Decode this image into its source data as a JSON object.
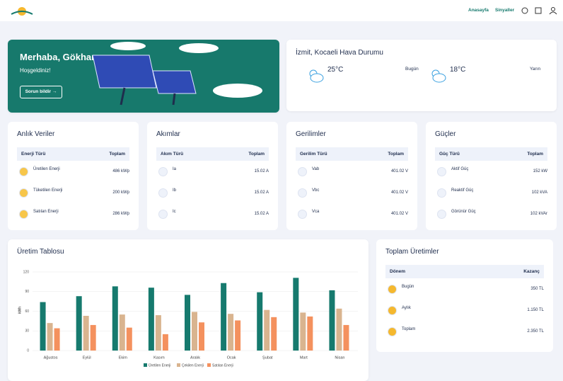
{
  "header": {
    "nav": [
      "Anasayfa",
      "Sinyaller"
    ]
  },
  "welcome": {
    "title": "Merhaba, Gökhan",
    "subtitle": "Hoşgeldiniz!",
    "button": "Sorun bildir"
  },
  "weather": {
    "title": "İzmit, Kocaeli Hava Durumu",
    "days": [
      {
        "temp": "25°C",
        "label": "Bugün"
      },
      {
        "temp": "18°C",
        "label": "Yarın"
      }
    ]
  },
  "cards": [
    {
      "title": "Anlık Veriler",
      "columns": [
        "Enerji Türü",
        "Toplam"
      ],
      "rows": [
        [
          "Üretilen Enerji",
          "486 kWp"
        ],
        [
          "Tüketilen Enerji",
          "200 kWp"
        ],
        [
          "Satılan Enerji",
          "286 kWp"
        ]
      ]
    },
    {
      "title": "Akımlar",
      "columns": [
        "Akım Türü",
        "Toplam"
      ],
      "rows": [
        [
          "Ia",
          "15.02 A"
        ],
        [
          "Ib",
          "15.02 A"
        ],
        [
          "Ic",
          "15.02 A"
        ]
      ]
    },
    {
      "title": "Gerilimler",
      "columns": [
        "Gerilim Türü",
        "Toplam"
      ],
      "rows": [
        [
          "Vab",
          "401.02 V"
        ],
        [
          "Vbc",
          "401.02 V"
        ],
        [
          "Vca",
          "401.02 V"
        ]
      ]
    },
    {
      "title": "Güçler",
      "columns": [
        "Güç Türü",
        "Toplam"
      ],
      "rows": [
        [
          "Aktif Güç",
          "152 kW"
        ],
        [
          "Reaktif Güç",
          "102 kVA"
        ],
        [
          "Görünür Güç",
          "102 kVAr"
        ]
      ]
    }
  ],
  "chart_data": {
    "type": "bar",
    "title": "Üretim Tablosu",
    "y_label": "kWh",
    "categories": [
      "Ağustos",
      "Eylül",
      "Ekim",
      "Kasım",
      "Aralık",
      "Ocak",
      "Şubat",
      "Mart",
      "Nisan"
    ],
    "series": [
      {
        "name": "Üretilen Enerji",
        "color": "#167a6e",
        "values": [
          74,
          83,
          98,
          96,
          85,
          103,
          89,
          111,
          92
        ]
      },
      {
        "name": "Çekilen Enerji",
        "color": "#d9b48f",
        "values": [
          42,
          53,
          55,
          54,
          59,
          56,
          62,
          58,
          64
        ]
      },
      {
        "name": "Satılan Enerji",
        "color": "#f4915e",
        "values": [
          34,
          39,
          35,
          25,
          43,
          46,
          51,
          52,
          39
        ]
      }
    ],
    "ylim": [
      0,
      120
    ],
    "yticks": [
      0,
      30,
      60,
      90,
      120
    ],
    "grid": true
  },
  "totals": {
    "title": "Toplam Üretimler",
    "columns": [
      "Dönem",
      "Kazanç"
    ],
    "rows": [
      [
        "Bugün",
        "350 TL"
      ],
      [
        "Aylık",
        "1.150 TL"
      ],
      [
        "Toplam",
        "2.350 TL"
      ]
    ]
  }
}
